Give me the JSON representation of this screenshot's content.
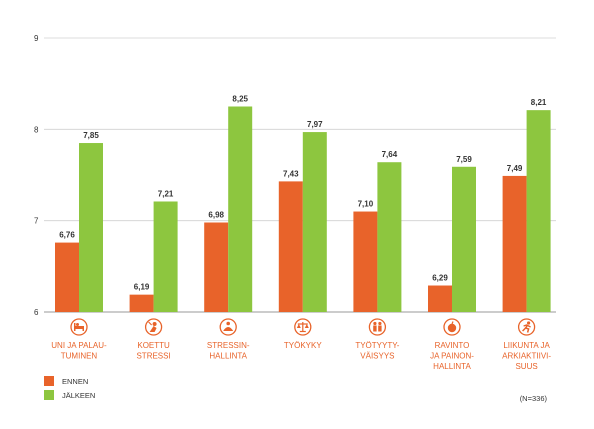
{
  "chart_data": {
    "type": "bar",
    "categories": [
      [
        "UNI JA PALAU-",
        "TUMINEN"
      ],
      [
        "KOETTU",
        "STRESSI"
      ],
      [
        "STRESSIN-",
        "HALLINTA"
      ],
      [
        "TYÖKYKY"
      ],
      [
        "TYÖTYYTY-",
        "VÄISYYS"
      ],
      [
        "RAVINTO",
        "JA PAINON-",
        "HALLINTA"
      ],
      [
        "LIIKUNTA JA",
        "ARKIAKTIIVI-",
        "SUUS"
      ]
    ],
    "category_icons": [
      "bed-icon",
      "stress-icon",
      "meditation-icon",
      "scale-icon",
      "people-icon",
      "apple-icon",
      "runner-icon"
    ],
    "series": [
      {
        "name": "ENNEN",
        "color": "#e8632a",
        "values": [
          6.76,
          6.19,
          6.98,
          7.43,
          7.1,
          6.29,
          7.49
        ],
        "labels": [
          "6,76",
          "6,19",
          "6,98",
          "7,43",
          "7,10",
          "6,29",
          "7,49"
        ]
      },
      {
        "name": "JÄLKEEN",
        "color": "#8dc63f",
        "values": [
          7.85,
          7.21,
          8.25,
          7.97,
          7.64,
          7.59,
          8.21
        ],
        "labels": [
          "7,85",
          "7,21",
          "8,25",
          "7,97",
          "7,64",
          "7,59",
          "8,21"
        ]
      }
    ],
    "ylim": [
      6,
      9
    ],
    "yticks": [
      6,
      7,
      8,
      9
    ],
    "grid": true,
    "legend_position": "bottom-left",
    "note": "(N=336)",
    "title": "",
    "xlabel": "",
    "ylabel": ""
  }
}
